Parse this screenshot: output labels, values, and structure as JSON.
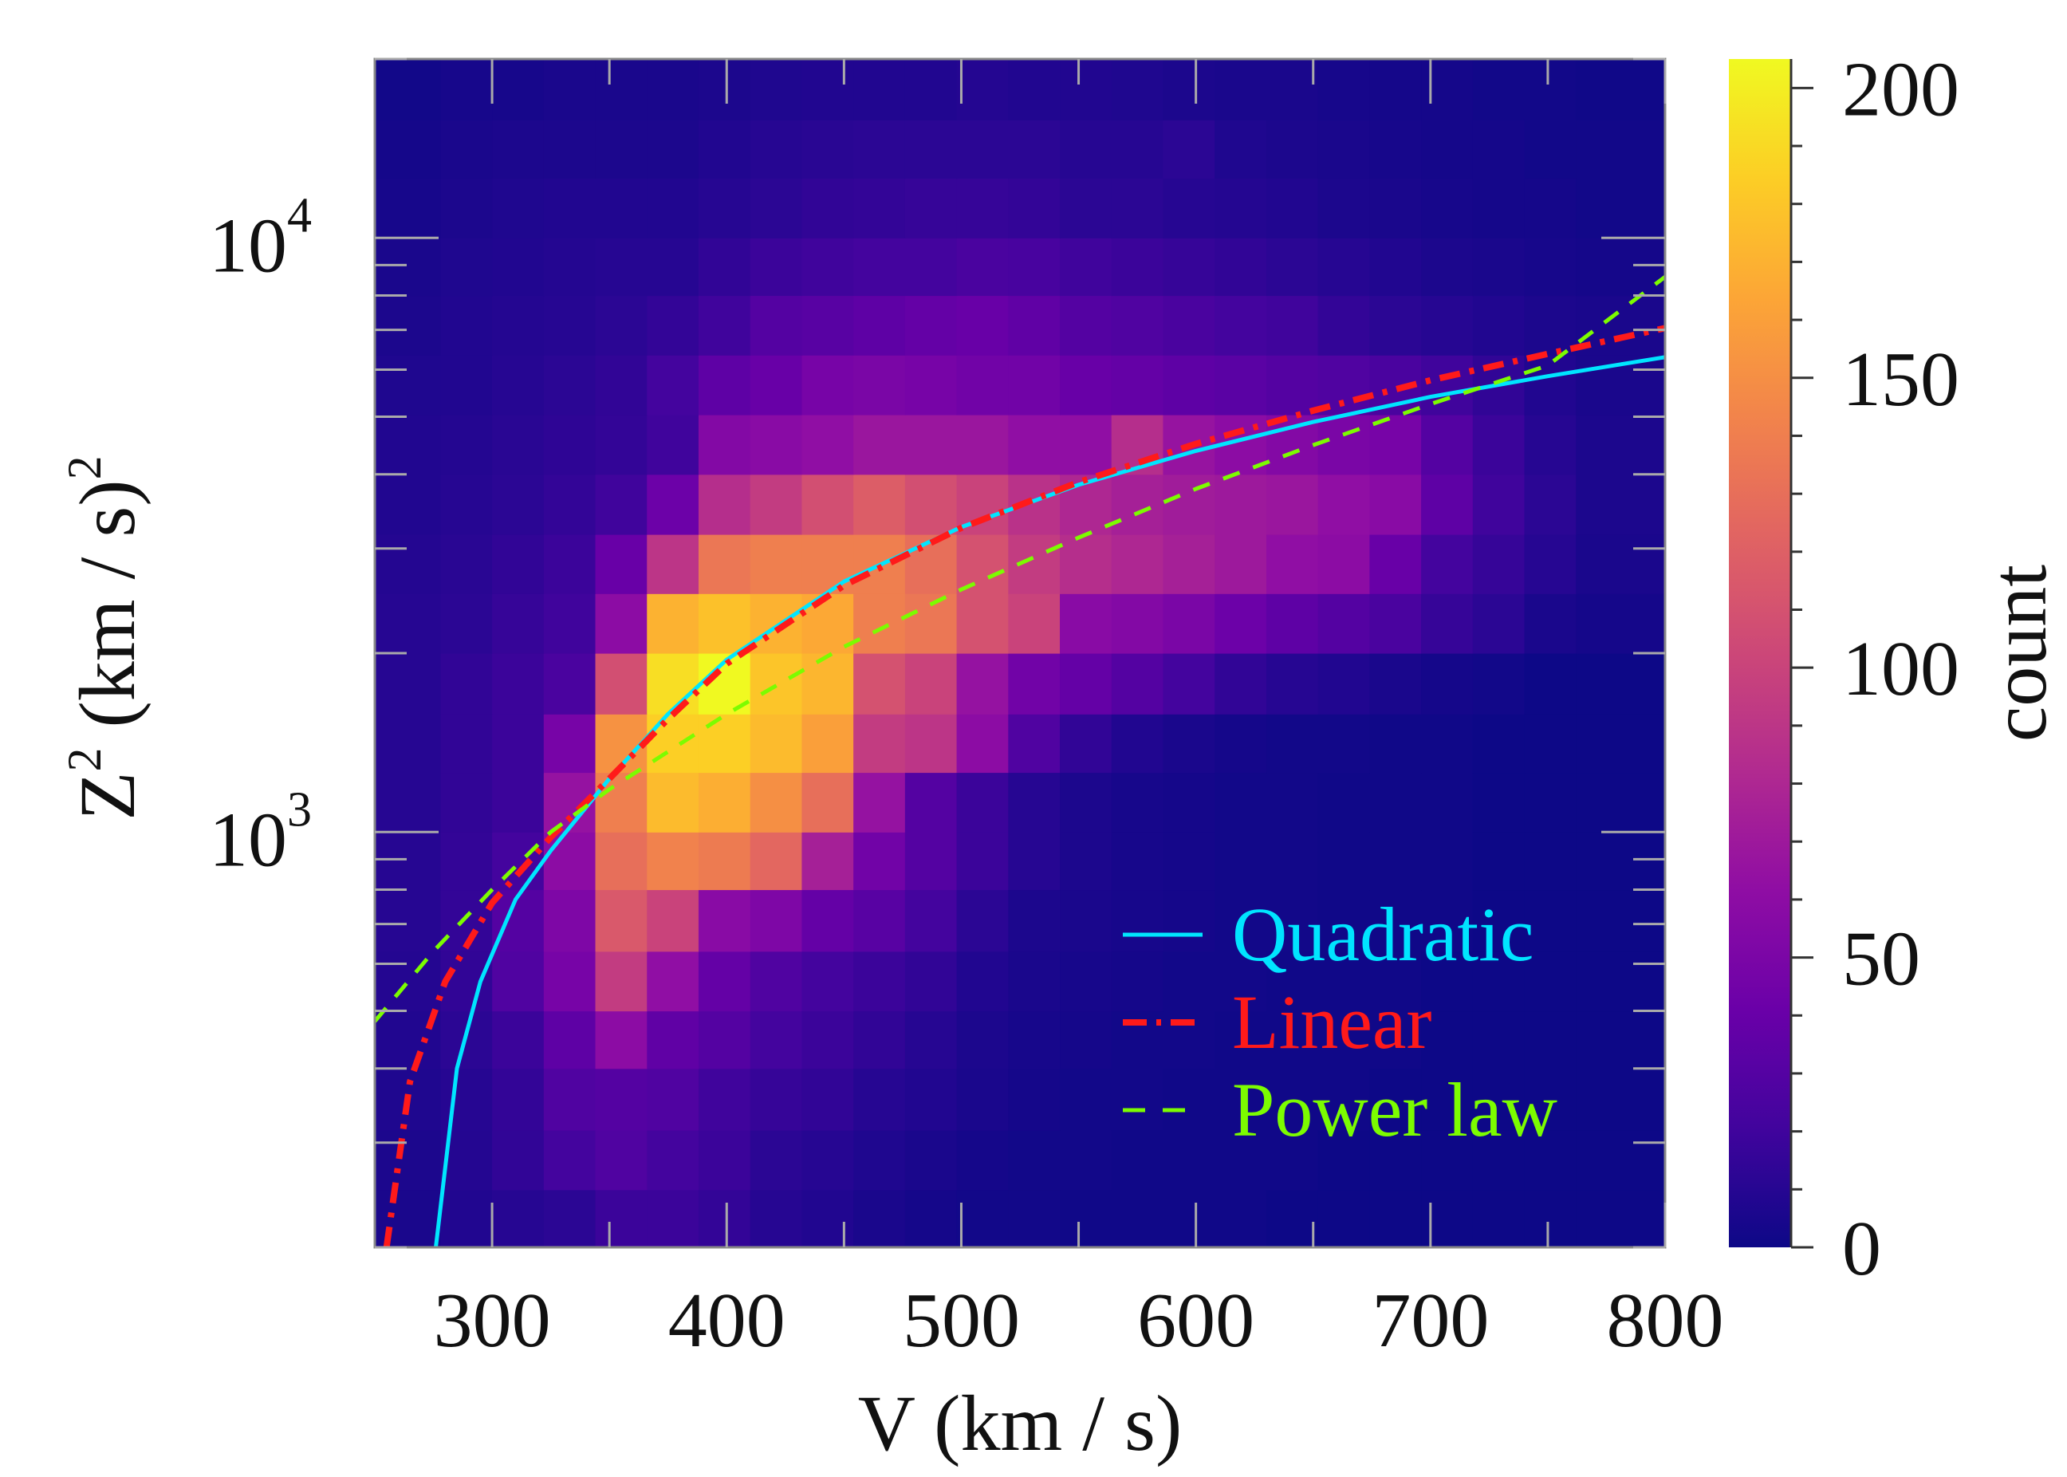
{
  "chart_data": {
    "type": "heatmap",
    "xlabel": "V (km / s)",
    "ylabel": {
      "base": "Z",
      "sup": "2",
      "mid": " (km / s)",
      "sup2": "2"
    },
    "x_ticks": [
      {
        "value": 300,
        "label": "300"
      },
      {
        "value": 400,
        "label": "400"
      },
      {
        "value": 500,
        "label": "500"
      },
      {
        "value": 600,
        "label": "600"
      },
      {
        "value": 700,
        "label": "700"
      },
      {
        "value": 800,
        "label": "800"
      }
    ],
    "y_ticks": [
      {
        "value": 1000,
        "base": "10",
        "exp": "3"
      },
      {
        "value": 10000,
        "base": "10",
        "exp": "4"
      }
    ],
    "xlim": [
      250,
      800
    ],
    "ylim": [
      200,
      20000
    ],
    "y_scale": "log",
    "x_bin_edges": [
      250,
      278,
      300,
      322,
      344,
      366,
      388,
      410,
      432,
      454,
      476,
      498,
      520,
      542,
      564,
      586,
      608,
      630,
      652,
      674,
      696,
      718,
      740,
      762,
      800
    ],
    "y_bin_edges": [
      200,
      250,
      315,
      400,
      500,
      630,
      800,
      1000,
      1260,
      1580,
      2000,
      2520,
      3170,
      4000,
      5040,
      6350,
      8000,
      10000,
      12600,
      15800,
      20000
    ],
    "counts": [
      [
        5,
        8,
        10,
        12,
        18,
        18,
        15,
        10,
        8,
        5,
        3,
        2,
        2,
        1,
        1,
        1,
        1,
        0,
        0,
        0,
        0,
        0,
        0,
        0
      ],
      [
        6,
        9,
        14,
        22,
        28,
        22,
        18,
        12,
        10,
        7,
        5,
        3,
        2,
        2,
        1,
        1,
        1,
        1,
        0,
        0,
        0,
        0,
        0,
        0
      ],
      [
        7,
        10,
        15,
        28,
        30,
        28,
        20,
        16,
        14,
        10,
        8,
        5,
        3,
        2,
        2,
        1,
        1,
        1,
        1,
        0,
        0,
        0,
        0,
        0
      ],
      [
        8,
        12,
        18,
        35,
        60,
        36,
        30,
        22,
        18,
        14,
        10,
        6,
        4,
        3,
        2,
        2,
        1,
        1,
        1,
        1,
        0,
        0,
        0,
        0
      ],
      [
        9,
        14,
        28,
        48,
        95,
        62,
        38,
        28,
        22,
        18,
        14,
        8,
        5,
        4,
        3,
        2,
        2,
        1,
        1,
        1,
        0,
        0,
        0,
        0
      ],
      [
        10,
        15,
        30,
        52,
        115,
        100,
        58,
        52,
        38,
        32,
        22,
        12,
        6,
        5,
        4,
        3,
        2,
        2,
        1,
        1,
        1,
        0,
        0,
        0
      ],
      [
        10,
        15,
        22,
        60,
        130,
        142,
        138,
        125,
        75,
        45,
        30,
        18,
        10,
        6,
        4,
        3,
        2,
        2,
        1,
        1,
        1,
        0,
        0,
        0
      ],
      [
        10,
        14,
        18,
        65,
        140,
        175,
        168,
        150,
        130,
        65,
        30,
        18,
        10,
        6,
        4,
        3,
        2,
        2,
        1,
        1,
        1,
        0,
        0,
        0
      ],
      [
        10,
        14,
        18,
        48,
        152,
        185,
        185,
        175,
        160,
        95,
        90,
        60,
        28,
        14,
        8,
        5,
        3,
        2,
        2,
        1,
        1,
        0,
        0,
        0
      ],
      [
        10,
        14,
        18,
        25,
        108,
        192,
        205,
        180,
        172,
        110,
        100,
        65,
        45,
        38,
        30,
        22,
        14,
        10,
        8,
        5,
        3,
        2,
        0,
        0
      ],
      [
        10,
        12,
        16,
        20,
        60,
        170,
        178,
        170,
        165,
        140,
        135,
        110,
        100,
        58,
        55,
        50,
        42,
        35,
        30,
        25,
        16,
        12,
        5,
        3
      ],
      [
        9,
        11,
        14,
        18,
        40,
        90,
        135,
        140,
        140,
        140,
        130,
        110,
        95,
        85,
        80,
        75,
        70,
        62,
        60,
        40,
        22,
        16,
        10,
        5
      ],
      [
        8,
        10,
        12,
        15,
        20,
        42,
        85,
        95,
        108,
        118,
        108,
        100,
        88,
        80,
        75,
        72,
        70,
        68,
        62,
        58,
        35,
        20,
        12,
        6
      ],
      [
        8,
        9,
        11,
        13,
        15,
        20,
        55,
        58,
        62,
        68,
        68,
        68,
        62,
        62,
        85,
        66,
        60,
        55,
        50,
        48,
        30,
        18,
        10,
        6
      ],
      [
        7,
        8,
        10,
        12,
        14,
        22,
        35,
        40,
        48,
        50,
        48,
        45,
        45,
        40,
        38,
        35,
        33,
        30,
        28,
        25,
        20,
        14,
        8,
        5
      ],
      [
        6,
        8,
        9,
        10,
        12,
        15,
        20,
        30,
        32,
        35,
        38,
        40,
        36,
        30,
        28,
        25,
        22,
        20,
        15,
        12,
        10,
        8,
        6,
        5
      ],
      [
        5,
        7,
        8,
        9,
        10,
        10,
        14,
        18,
        20,
        22,
        22,
        25,
        24,
        20,
        18,
        16,
        14,
        12,
        10,
        8,
        6,
        5,
        4,
        3
      ],
      [
        4,
        6,
        7,
        8,
        8,
        8,
        10,
        12,
        14,
        15,
        16,
        16,
        15,
        12,
        12,
        10,
        9,
        8,
        6,
        5,
        4,
        3,
        3,
        2
      ],
      [
        3,
        5,
        6,
        6,
        6,
        6,
        8,
        10,
        11,
        12,
        12,
        12,
        12,
        10,
        10,
        12,
        7,
        6,
        5,
        4,
        3,
        3,
        2,
        2
      ],
      [
        2,
        4,
        4,
        5,
        5,
        5,
        6,
        7,
        8,
        8,
        8,
        9,
        8,
        8,
        7,
        6,
        5,
        5,
        4,
        3,
        3,
        2,
        2,
        1
      ]
    ],
    "colorbar": {
      "label": "count",
      "min": 0,
      "max": 205,
      "ticks": [
        {
          "value": 0,
          "label": "0"
        },
        {
          "value": 50,
          "label": "50"
        },
        {
          "value": 100,
          "label": "100"
        },
        {
          "value": 150,
          "label": "150"
        },
        {
          "value": 200,
          "label": "200"
        }
      ],
      "colormap": "plasma"
    },
    "fits": [
      {
        "name": "Quadratic",
        "color": "#00e5ff",
        "style": "solid",
        "points": [
          [
            276,
            200
          ],
          [
            285,
            400
          ],
          [
            295,
            560
          ],
          [
            310,
            770
          ],
          [
            325,
            930
          ],
          [
            350,
            1230
          ],
          [
            375,
            1580
          ],
          [
            400,
            1950
          ],
          [
            450,
            2640
          ],
          [
            500,
            3260
          ],
          [
            550,
            3840
          ],
          [
            600,
            4380
          ],
          [
            650,
            4900
          ],
          [
            700,
            5400
          ],
          [
            750,
            5850
          ],
          [
            800,
            6300
          ]
        ]
      },
      {
        "name": "Linear",
        "color": "#ff1a1a",
        "style": "dashdot",
        "points": [
          [
            255,
            200
          ],
          [
            265,
            380
          ],
          [
            280,
            560
          ],
          [
            300,
            760
          ],
          [
            325,
            980
          ],
          [
            350,
            1230
          ],
          [
            375,
            1550
          ],
          [
            400,
            1920
          ],
          [
            450,
            2600
          ],
          [
            500,
            3250
          ],
          [
            550,
            3880
          ],
          [
            600,
            4500
          ],
          [
            650,
            5120
          ],
          [
            700,
            5760
          ],
          [
            750,
            6380
          ],
          [
            800,
            7050
          ]
        ]
      },
      {
        "name": "Power law",
        "color": "#7cfc00",
        "style": "dashed",
        "points": [
          [
            250,
            480
          ],
          [
            275,
            630
          ],
          [
            300,
            800
          ],
          [
            325,
            1000
          ],
          [
            350,
            1180
          ],
          [
            400,
            1580
          ],
          [
            450,
            2050
          ],
          [
            500,
            2560
          ],
          [
            550,
            3130
          ],
          [
            600,
            3780
          ],
          [
            650,
            4480
          ],
          [
            700,
            5250
          ],
          [
            750,
            6100
          ],
          [
            800,
            8600
          ]
        ]
      }
    ],
    "legend_position": "lower-right",
    "grid": false
  }
}
